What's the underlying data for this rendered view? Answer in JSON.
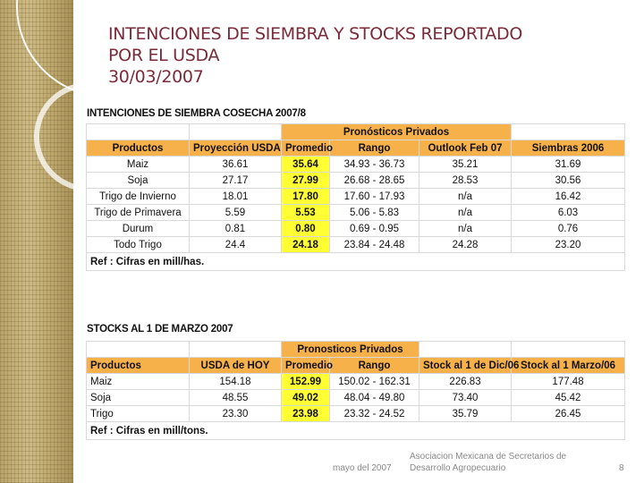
{
  "slide": {
    "title_line1": "INTENCIONES DE SIEMBRA Y STOCKS REPORTADO",
    "title_line2": "POR EL USDA",
    "title_line3": "30/03/2007"
  },
  "table1": {
    "caption": "INTENCIONES DE SIEMBRA COSECHA 2007/8",
    "group_header": "Pronósticos Privados",
    "headers": [
      "Productos",
      "Proyección USDA",
      "Promedio",
      "Rango",
      "Outlook Feb 07",
      "Siembras 2006"
    ],
    "rows": [
      [
        "Maiz",
        "36.61",
        "35.64",
        "34.93 - 36.73",
        "35.21",
        "31.69"
      ],
      [
        "Soja",
        "27.17",
        "27.99",
        "26.68 - 28.65",
        "28.53",
        "30.56"
      ],
      [
        "Trigo de Invierno",
        "18.01",
        "17.80",
        "17.60 - 17.93",
        "n/a",
        "16.42"
      ],
      [
        "Trigo de Primavera",
        "5.59",
        "5.53",
        "5.06 - 5.83",
        "n/a",
        "6.03"
      ],
      [
        "Durum",
        "0.81",
        "0.80",
        "0.69 - 0.95",
        "n/a",
        "0.76"
      ],
      [
        "Todo Trigo",
        "24.4",
        "24.18",
        "23.84 - 24.48",
        "24.28",
        "23.20"
      ]
    ],
    "note": "Ref : Cifras en mill/has."
  },
  "table2": {
    "caption": "STOCKS AL 1 DE MARZO 2007",
    "group_header": "Pronosticos Privados",
    "headers": [
      "Productos",
      "USDA de HOY",
      "Promedio",
      "Rango",
      "Stock al 1 de Dic/06",
      "Stock al 1 Marzo/06"
    ],
    "rows": [
      [
        "Maiz",
        "154.18",
        "152.99",
        "150.02 - 162.31",
        "226.83",
        "177.48"
      ],
      [
        "Soja",
        "48.55",
        "49.02",
        "48.04 - 49.80",
        "73.40",
        "45.42"
      ],
      [
        "Trigo",
        "23.30",
        "23.98",
        "23.32 - 24.52",
        "35.79",
        "26.45"
      ]
    ],
    "note": "Ref : Cifras en mill/tons."
  },
  "footer": {
    "date": "mayo del 2007",
    "org_line1": "Asociacion Mexicana de Secretarios de",
    "org_line2": "Desarrollo Agropecuario",
    "page": "8"
  },
  "colors": {
    "header_orange": "#f7b14b",
    "highlight_yellow": "#ffff33",
    "title_color": "#7b2a3a"
  }
}
